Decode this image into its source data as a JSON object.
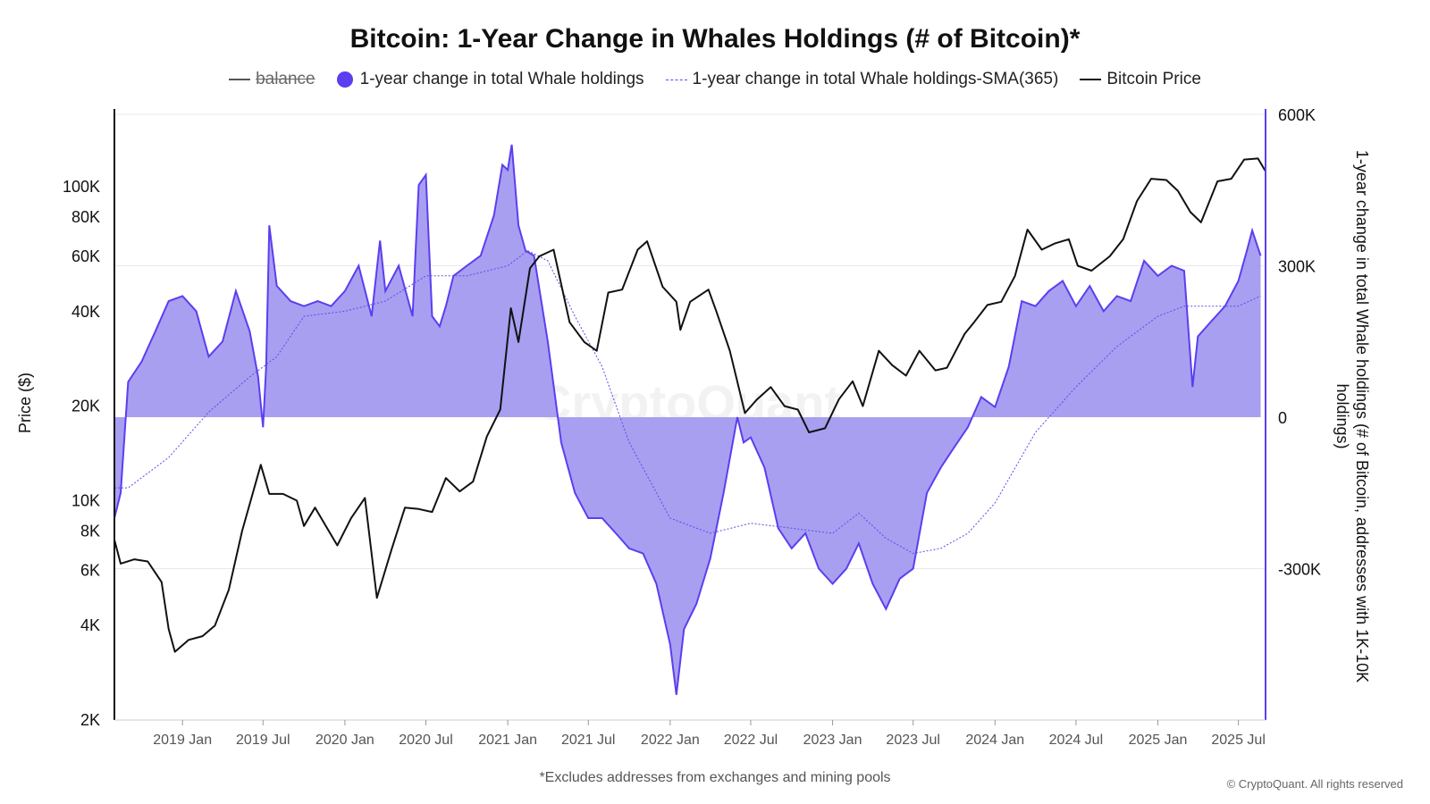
{
  "title": "Bitcoin: 1-Year Change in Whales Holdings (# of Bitcoin)*",
  "legend": {
    "balance": "balance",
    "change": "1-year change in total Whale holdings",
    "sma": "1-year change in total Whale holdings-SMA(365)",
    "price": "Bitcoin Price"
  },
  "footnote": "*Excludes addresses from exchanges and mining pools",
  "copyright": "© CryptoQuant. All rights reserved",
  "watermark": "CryptoQuant",
  "colors": {
    "change_fill": "#a39af0",
    "change_line": "#5b3ef0",
    "sma_line": "#5b4bea",
    "price_line": "#111111",
    "right_axis": "#5b3ef0"
  },
  "chart_data": {
    "type": "area",
    "title": "Bitcoin: 1-Year Change in Whales Holdings (# of Bitcoin)*",
    "xlabel": "",
    "ylabel_left": "Price ($)",
    "ylabel_right": "1-year change in total Whale holdings (# of Bitcoin, addresses with 1K-10K holdings)",
    "x_ticks": [
      "2019 Jan",
      "2019 Jul",
      "2020 Jan",
      "2020 Jul",
      "2021 Jan",
      "2021 Jul",
      "2022 Jan",
      "2022 Jul",
      "2023 Jan",
      "2023 Jul",
      "2024 Jan",
      "2024 Jul",
      "2025 Jan",
      "2025 Jul"
    ],
    "x_range": [
      "2018-08-01",
      "2025-08-31"
    ],
    "left_axis": {
      "scale": "log",
      "range": [
        2000,
        170000
      ],
      "ticks": [
        2000,
        4000,
        6000,
        8000,
        10000,
        20000,
        40000,
        60000,
        80000,
        100000
      ],
      "tick_labels": [
        "2K",
        "4K",
        "6K",
        "8K",
        "10K",
        "20K",
        "40K",
        "60K",
        "80K",
        "100K"
      ]
    },
    "right_axis": {
      "scale": "linear",
      "range": [
        -600000,
        600000
      ],
      "ticks": [
        -300000,
        0,
        300000,
        600000
      ],
      "tick_labels": [
        "-300K",
        "0",
        "300K",
        "600K"
      ]
    },
    "grid": "horizontal at right-axis ticks",
    "legend_position": "top-center",
    "series": [
      {
        "name": "1-year change in total Whale holdings",
        "axis": "right",
        "style": "area",
        "x": [
          "2018-08-01",
          "2018-08-15",
          "2018-09-01",
          "2018-10-01",
          "2018-11-01",
          "2018-12-01",
          "2019-01-01",
          "2019-02-01",
          "2019-03-01",
          "2019-04-01",
          "2019-05-01",
          "2019-06-01",
          "2019-06-20",
          "2019-07-01",
          "2019-07-08",
          "2019-07-15",
          "2019-08-01",
          "2019-09-01",
          "2019-10-01",
          "2019-11-01",
          "2019-12-01",
          "2020-01-01",
          "2020-02-01",
          "2020-03-01",
          "2020-03-20",
          "2020-04-01",
          "2020-05-01",
          "2020-06-01",
          "2020-06-15",
          "2020-07-01",
          "2020-07-15",
          "2020-08-01",
          "2020-08-15",
          "2020-09-01",
          "2020-10-01",
          "2020-11-01",
          "2020-12-01",
          "2020-12-20",
          "2021-01-01",
          "2021-01-10",
          "2021-01-25",
          "2021-02-10",
          "2021-03-01",
          "2021-04-01",
          "2021-05-01",
          "2021-06-01",
          "2021-07-01",
          "2021-08-01",
          "2021-09-01",
          "2021-10-01",
          "2021-11-01",
          "2021-12-01",
          "2022-01-01",
          "2022-01-15",
          "2022-02-01",
          "2022-03-01",
          "2022-04-01",
          "2022-05-01",
          "2022-06-01",
          "2022-06-15",
          "2022-07-01",
          "2022-08-01",
          "2022-09-01",
          "2022-10-01",
          "2022-11-01",
          "2022-12-01",
          "2023-01-01",
          "2023-02-01",
          "2023-03-01",
          "2023-04-01",
          "2023-05-01",
          "2023-06-01",
          "2023-07-01",
          "2023-08-01",
          "2023-09-01",
          "2023-10-01",
          "2023-11-01",
          "2023-12-01",
          "2024-01-01",
          "2024-02-01",
          "2024-03-01",
          "2024-04-01",
          "2024-05-01",
          "2024-06-01",
          "2024-07-01",
          "2024-08-01",
          "2024-09-01",
          "2024-10-01",
          "2024-11-01",
          "2024-12-01",
          "2025-01-01",
          "2025-02-01",
          "2025-03-01",
          "2025-03-20",
          "2025-04-01",
          "2025-05-01",
          "2025-06-01",
          "2025-07-01",
          "2025-07-20",
          "2025-08-01",
          "2025-08-20"
        ],
        "values": [
          -200000,
          -150000,
          70000,
          110000,
          170000,
          230000,
          240000,
          210000,
          120000,
          150000,
          250000,
          170000,
          80000,
          -20000,
          100000,
          380000,
          260000,
          230000,
          220000,
          230000,
          220000,
          250000,
          300000,
          200000,
          350000,
          250000,
          300000,
          200000,
          460000,
          480000,
          200000,
          180000,
          220000,
          280000,
          300000,
          320000,
          400000,
          500000,
          490000,
          540000,
          380000,
          330000,
          320000,
          150000,
          -50000,
          -150000,
          -200000,
          -200000,
          -230000,
          -260000,
          -270000,
          -330000,
          -450000,
          -550000,
          -420000,
          -370000,
          -280000,
          -150000,
          0,
          -50000,
          -40000,
          -100000,
          -220000,
          -260000,
          -230000,
          -300000,
          -330000,
          -300000,
          -250000,
          -330000,
          -380000,
          -320000,
          -300000,
          -150000,
          -100000,
          -60000,
          -20000,
          40000,
          20000,
          100000,
          230000,
          220000,
          250000,
          270000,
          220000,
          260000,
          210000,
          240000,
          230000,
          310000,
          280000,
          300000,
          290000,
          60000,
          160000,
          190000,
          220000,
          270000,
          330000,
          370000,
          320000
        ]
      },
      {
        "name": "1-year change in total Whale holdings-SMA(365)",
        "axis": "right",
        "style": "dotted",
        "x": [
          "2018-08-01",
          "2018-09-01",
          "2018-10-01",
          "2018-12-01",
          "2019-03-01",
          "2019-06-01",
          "2019-08-01",
          "2019-10-01",
          "2020-01-01",
          "2020-04-01",
          "2020-07-01",
          "2020-10-01",
          "2021-01-01",
          "2021-02-15",
          "2021-04-01",
          "2021-06-01",
          "2021-08-01",
          "2021-10-01",
          "2022-01-01",
          "2022-04-01",
          "2022-07-01",
          "2022-10-01",
          "2023-01-01",
          "2023-03-01",
          "2023-05-01",
          "2023-07-01",
          "2023-09-01",
          "2023-11-01",
          "2024-01-01",
          "2024-04-01",
          "2024-07-01",
          "2024-10-01",
          "2025-01-01",
          "2025-03-01",
          "2025-05-01",
          "2025-07-01",
          "2025-08-20"
        ],
        "values": [
          -140000,
          -140000,
          -120000,
          -80000,
          10000,
          80000,
          120000,
          200000,
          210000,
          230000,
          280000,
          280000,
          300000,
          330000,
          310000,
          200000,
          100000,
          -50000,
          -200000,
          -230000,
          -210000,
          -220000,
          -230000,
          -190000,
          -240000,
          -270000,
          -260000,
          -230000,
          -170000,
          -30000,
          60000,
          140000,
          200000,
          220000,
          220000,
          220000,
          240000
        ]
      },
      {
        "name": "Bitcoin Price",
        "axis": "left",
        "style": "line",
        "x": [
          "2018-08-01",
          "2018-08-15",
          "2018-09-15",
          "2018-10-15",
          "2018-11-15",
          "2018-12-01",
          "2018-12-15",
          "2019-01-15",
          "2019-02-15",
          "2019-03-15",
          "2019-04-15",
          "2019-05-15",
          "2019-06-26",
          "2019-07-15",
          "2019-08-15",
          "2019-09-15",
          "2019-10-01",
          "2019-10-26",
          "2019-11-15",
          "2019-12-15",
          "2020-01-15",
          "2020-02-15",
          "2020-03-13",
          "2020-04-15",
          "2020-05-15",
          "2020-06-15",
          "2020-07-15",
          "2020-08-15",
          "2020-09-15",
          "2020-10-15",
          "2020-11-15",
          "2020-12-15",
          "2021-01-08",
          "2021-01-25",
          "2021-02-20",
          "2021-03-13",
          "2021-04-14",
          "2021-05-20",
          "2021-06-22",
          "2021-07-20",
          "2021-08-15",
          "2021-09-15",
          "2021-10-20",
          "2021-11-10",
          "2021-12-15",
          "2022-01-15",
          "2022-01-24",
          "2022-02-15",
          "2022-03-28",
          "2022-04-15",
          "2022-05-15",
          "2022-06-18",
          "2022-07-15",
          "2022-08-15",
          "2022-09-15",
          "2022-10-15",
          "2022-11-09",
          "2022-12-15",
          "2023-01-15",
          "2023-02-15",
          "2023-03-10",
          "2023-04-15",
          "2023-05-15",
          "2023-06-15",
          "2023-07-15",
          "2023-08-20",
          "2023-09-15",
          "2023-10-25",
          "2023-11-15",
          "2023-12-15",
          "2024-01-15",
          "2024-02-15",
          "2024-03-14",
          "2024-04-15",
          "2024-05-15",
          "2024-06-15",
          "2024-07-05",
          "2024-08-05",
          "2024-09-15",
          "2024-10-15",
          "2024-11-15",
          "2024-12-17",
          "2025-01-20",
          "2025-02-15",
          "2025-03-15",
          "2025-04-08",
          "2025-05-15",
          "2025-06-15",
          "2025-07-14",
          "2025-08-14",
          "2025-08-31"
        ],
        "values": [
          7500,
          6300,
          6500,
          6400,
          5500,
          3900,
          3300,
          3600,
          3700,
          4000,
          5200,
          8000,
          13000,
          10500,
          10500,
          10000,
          8300,
          9500,
          8500,
          7200,
          8800,
          10200,
          4900,
          7000,
          9500,
          9400,
          9200,
          11800,
          10700,
          11500,
          16000,
          19500,
          41000,
          32000,
          55000,
          60000,
          63000,
          37000,
          32000,
          30000,
          46000,
          47000,
          63000,
          67000,
          48000,
          43000,
          35000,
          43000,
          47000,
          40000,
          30000,
          19000,
          21000,
          23000,
          20000,
          19500,
          16500,
          17000,
          21000,
          24000,
          20000,
          30000,
          27000,
          25000,
          30000,
          26000,
          26500,
          34000,
          37000,
          42000,
          43000,
          52000,
          73000,
          63000,
          66000,
          68000,
          56000,
          54000,
          60000,
          68000,
          90000,
          106000,
          105000,
          97000,
          83000,
          77000,
          104000,
          106000,
          122000,
          123000,
          112000
        ]
      },
      {
        "name": "balance",
        "axis": "right",
        "style": "hidden",
        "x": [],
        "values": []
      }
    ]
  }
}
